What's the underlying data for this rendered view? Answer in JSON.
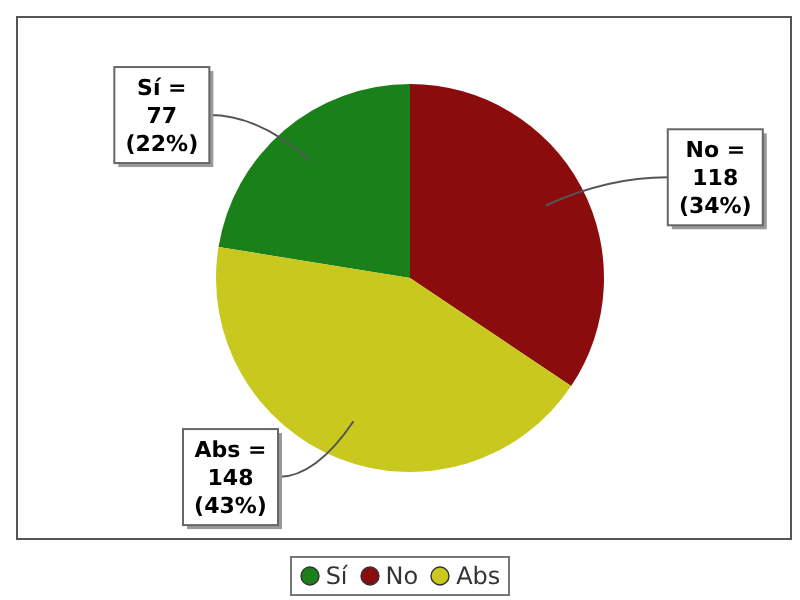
{
  "chart_data": {
    "type": "pie",
    "categories": [
      "Sí",
      "No",
      "Abs"
    ],
    "values": [
      77,
      118,
      148
    ],
    "colors": [
      "#1a801a",
      "#8b0c0c",
      "#c8c81e"
    ],
    "value_labels": [
      "Sí = 77 (22%)",
      "No = 118 (34%)",
      "Abs = 148 (43%)"
    ],
    "legend": "bottom"
  }
}
